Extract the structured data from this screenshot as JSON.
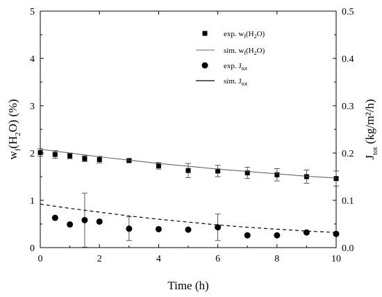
{
  "chart_data": {
    "type": "scatter",
    "title": "",
    "xlabel": "Time (h)",
    "ylabel_left": {
      "base": "w",
      "sub1": "f",
      "mid": "(H",
      "sub2": "2",
      "end": "O) (%)"
    },
    "ylabel_right": {
      "base": "J",
      "sub": "tot",
      "end": " (kg/m²/h)"
    },
    "xlim": [
      0,
      10
    ],
    "ylim_left": [
      0,
      5
    ],
    "ylim_right": [
      0,
      0.5
    ],
    "x_ticks": [
      "0",
      "2",
      "4",
      "6",
      "8",
      "10"
    ],
    "y_left_ticks": [
      "0",
      "1",
      "2",
      "3",
      "4",
      "5"
    ],
    "y_right_ticks": [
      "0.0",
      "0.1",
      "0.2",
      "0.3",
      "0.4",
      "0.5"
    ],
    "legend_position": "top-right",
    "grid": false,
    "series": [
      {
        "name": {
          "base": "exp. w",
          "sub": "f",
          "end": "(H",
          "sub2": "2",
          "end2": "O)"
        },
        "kind": "square",
        "axis": "left",
        "x": [
          0,
          0.5,
          1,
          1.5,
          2,
          3,
          4,
          5,
          6,
          7,
          8,
          9,
          10
        ],
        "y": [
          2.01,
          1.97,
          1.94,
          1.88,
          1.86,
          1.84,
          1.73,
          1.63,
          1.62,
          1.58,
          1.54,
          1.5,
          1.46
        ],
        "err": [
          0.08,
          0.08,
          0.06,
          0.06,
          0.07,
          0.03,
          0.07,
          0.15,
          0.12,
          0.12,
          0.13,
          0.14,
          0.16
        ]
      },
      {
        "name": {
          "base": "sim. w",
          "sub": "f",
          "end": "(H",
          "sub2": "2",
          "end2": "O)"
        },
        "kind": "thin-line",
        "axis": "left",
        "x": [
          0,
          1,
          2,
          3,
          4,
          5,
          6,
          7,
          8,
          9,
          10
        ],
        "y": [
          2.08,
          2.0,
          1.92,
          1.85,
          1.78,
          1.72,
          1.66,
          1.61,
          1.56,
          1.51,
          1.47
        ]
      },
      {
        "name": {
          "base": "exp. J",
          "sub": "tot"
        },
        "kind": "circle",
        "axis": "right",
        "x": [
          0.5,
          1,
          1.5,
          2,
          3,
          4,
          5,
          6,
          7,
          8,
          9,
          10
        ],
        "y": [
          0.063,
          0.049,
          0.058,
          0.055,
          0.04,
          0.039,
          0.038,
          0.043,
          0.026,
          0.026,
          0.032,
          0.029
        ],
        "err": [
          0,
          0,
          0.057,
          0,
          0.025,
          0,
          0,
          0.028,
          0,
          0,
          0,
          0
        ]
      },
      {
        "name": {
          "base": "sim. J",
          "sub": "tot"
        },
        "kind": "dashed-line",
        "axis": "right",
        "x": [
          0,
          1,
          2,
          3,
          4,
          5,
          6,
          7,
          8,
          9,
          10
        ],
        "y": [
          0.092,
          0.083,
          0.075,
          0.067,
          0.06,
          0.054,
          0.048,
          0.043,
          0.039,
          0.035,
          0.032
        ]
      }
    ]
  }
}
